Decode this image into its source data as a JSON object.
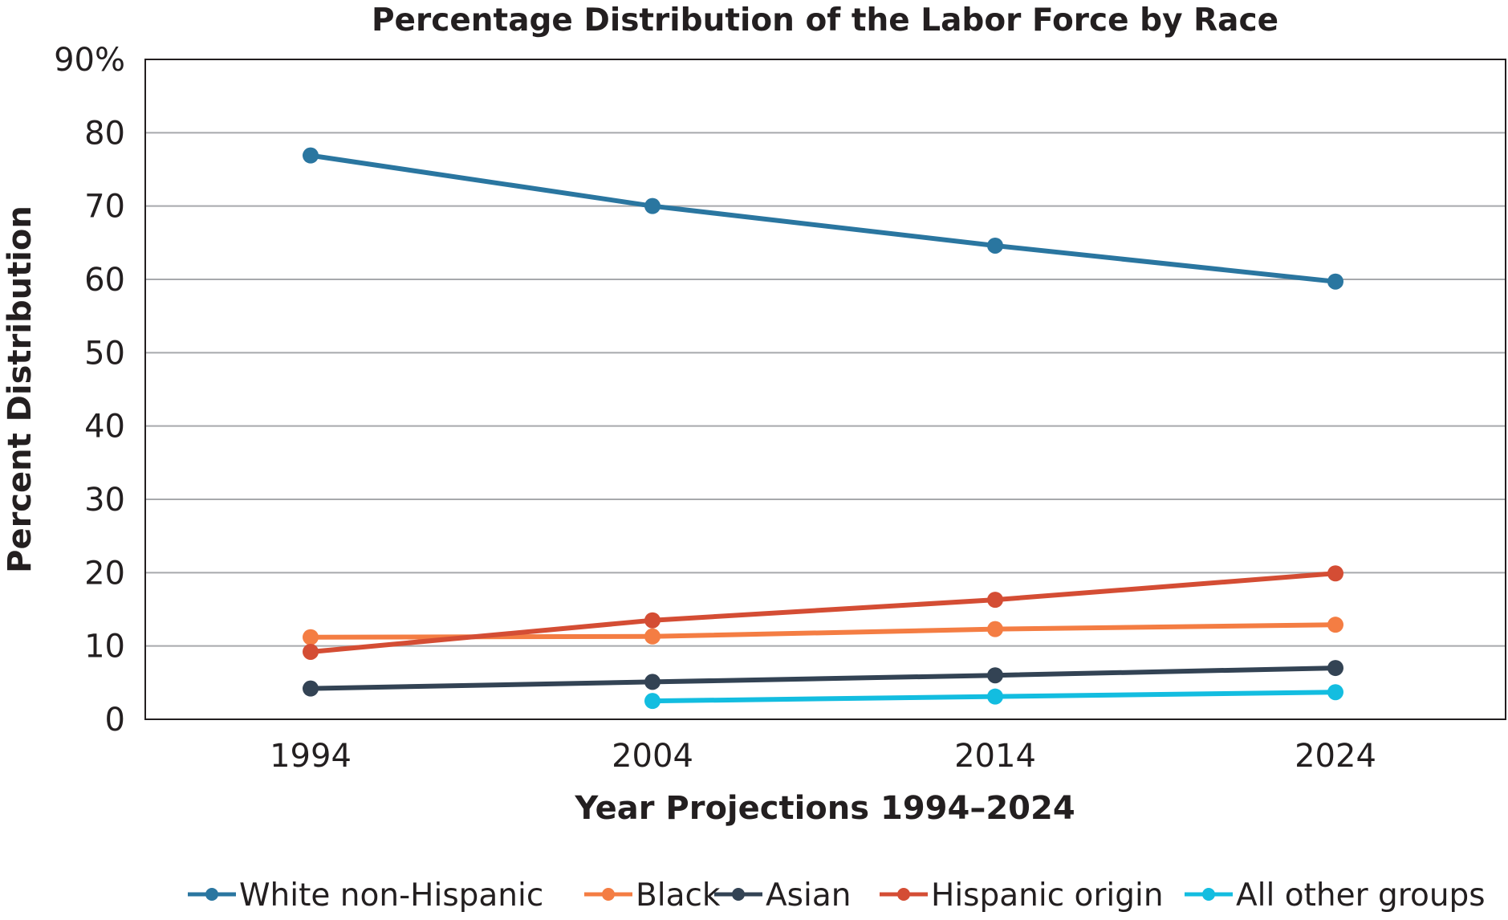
{
  "chart_data": {
    "type": "line",
    "title": "Percentage Distribution of the Labor Force by Race",
    "xlabel": "Year Projections 1994–2024",
    "ylabel": "Percent Distribution",
    "categories": [
      "1994",
      "2004",
      "2014",
      "2024"
    ],
    "ylim": [
      0,
      90
    ],
    "yticks": [
      "0",
      "10",
      "20",
      "30",
      "40",
      "50",
      "60",
      "70",
      "80",
      "90%"
    ],
    "grid": true,
    "legend_position": "bottom",
    "series": [
      {
        "name": "White non-Hispanic",
        "color": "#2a76a0",
        "values": [
          76.9,
          70.0,
          64.6,
          59.7
        ]
      },
      {
        "name": "Black",
        "color": "#f47d43",
        "values": [
          11.2,
          11.3,
          12.3,
          12.9
        ]
      },
      {
        "name": "Asian",
        "color": "#334354",
        "values": [
          4.2,
          5.1,
          6.0,
          7.0
        ]
      },
      {
        "name": "Hispanic origin",
        "color": "#d44d34",
        "values": [
          9.2,
          13.5,
          16.3,
          19.9
        ]
      },
      {
        "name": "All other groups",
        "color": "#13bde0",
        "values": [
          null,
          2.5,
          3.1,
          3.7
        ]
      }
    ]
  }
}
